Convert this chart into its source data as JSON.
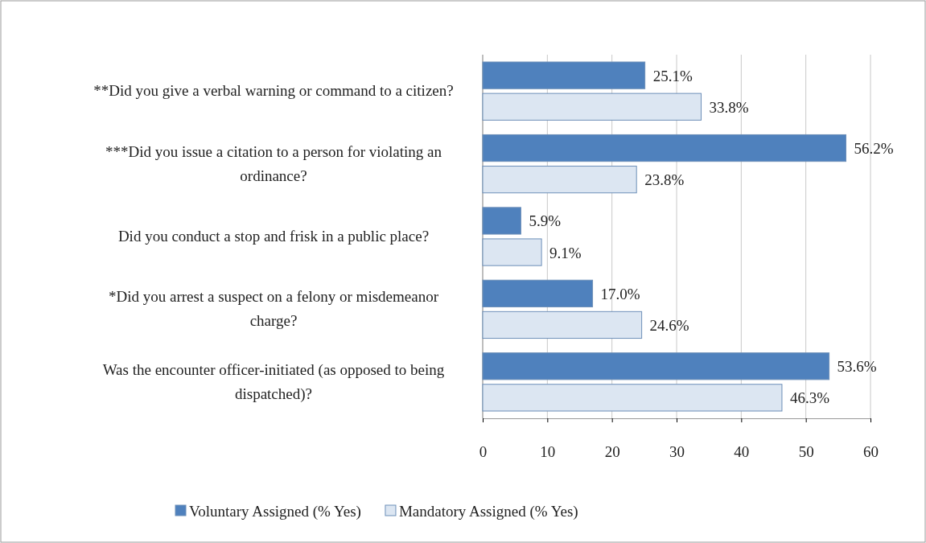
{
  "chart_data": {
    "type": "bar",
    "orientation": "horizontal",
    "categories": [
      "**Did you give a verbal warning or command to a citizen?",
      "***Did you issue a citation to a person for violating an ordinance?",
      "Did you conduct a stop and frisk in a public place?",
      "*Did you arrest a suspect on a felony or misdemeanor charge?",
      "Was the encounter officer-initiated (as opposed to being dispatched)?"
    ],
    "series": [
      {
        "name": "Voluntary Assigned (% Yes)",
        "color": "#4f81bd",
        "values": [
          25.1,
          56.2,
          5.9,
          17.0,
          53.6
        ],
        "value_labels": [
          "25.1%",
          "56.2%",
          "5.9%",
          "17.0%",
          "53.6%"
        ]
      },
      {
        "name": "Mandatory Assigned (% Yes)",
        "color": "#dce6f2",
        "values": [
          33.8,
          23.8,
          9.1,
          24.6,
          46.3
        ],
        "value_labels": [
          "33.8%",
          "23.8%",
          "9.1%",
          "24.6%",
          "46.3%"
        ]
      }
    ],
    "xlim": [
      0,
      60
    ],
    "xticks": [
      0,
      10,
      20,
      30,
      40,
      50,
      60
    ],
    "grid": "x",
    "legend": "bottom"
  }
}
